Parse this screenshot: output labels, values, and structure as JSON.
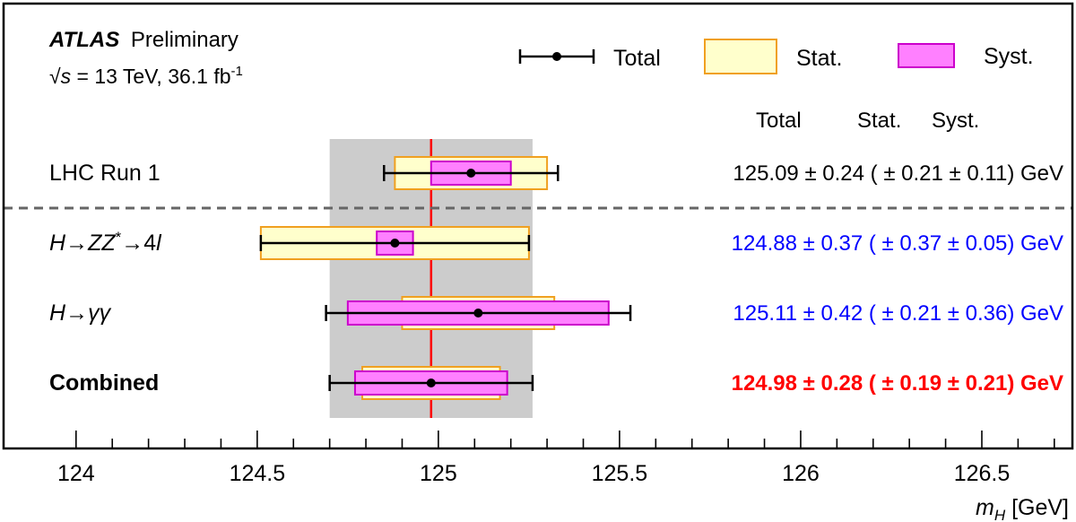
{
  "header": {
    "experiment": "ATLAS",
    "status": "Preliminary",
    "energy_prefix": "√",
    "energy_s": "s",
    "energy_text": " = 13 TeV, 36.1 fb",
    "lumi_exp": "-1"
  },
  "legend": {
    "total": "Total",
    "stat": "Stat.",
    "syst": "Syst."
  },
  "column_headers": {
    "total": "Total",
    "stat": "Stat.",
    "syst": "Syst."
  },
  "colors": {
    "stat_fill": "#ffffcc",
    "stat_edge": "#f0a020",
    "syst_fill": "#ff80ff",
    "syst_edge": "#cc00cc",
    "band": "#cccccc",
    "line": "#ff0000",
    "blue": "#0000ff",
    "red": "#ff0000",
    "black": "#000000"
  },
  "chart_data": {
    "type": "scatter",
    "xlabel_sym": "m",
    "xlabel_sub": "H",
    "xlabel_unit": " [GeV]",
    "xlim": [
      123.8,
      126.75
    ],
    "ticks": [
      "124",
      "124.5",
      "125",
      "125.5",
      "126",
      "126.5"
    ],
    "tick_values": [
      124,
      124.5,
      125,
      125.5,
      126,
      126.5
    ],
    "band": {
      "center": 124.98,
      "half_width": 0.28
    },
    "line_value": 124.98,
    "rows": [
      {
        "label": "LHC Run 1",
        "label_style": "normal",
        "value": 125.09,
        "total": 0.24,
        "stat": 0.21,
        "syst": 0.11,
        "text": "125.09 ± 0.24 ( ± 0.21 ± 0.11) GeV",
        "text_color": "#000000",
        "bold": false
      },
      {
        "label_parts": [
          "H",
          "→",
          "ZZ",
          "*",
          "→",
          "4",
          "l"
        ],
        "label_style": "math",
        "value": 124.88,
        "total": 0.37,
        "stat": 0.37,
        "syst": 0.05,
        "text": "124.88 ± 0.37 ( ± 0.37 ± 0.05) GeV",
        "text_color": "#0000ff",
        "bold": false
      },
      {
        "label_parts": [
          "H",
          "→",
          "γγ"
        ],
        "label_style": "math",
        "value": 125.11,
        "total": 0.42,
        "stat": 0.21,
        "syst": 0.36,
        "text": "125.11 ± 0.42 ( ± 0.21 ± 0.36) GeV",
        "text_color": "#0000ff",
        "bold": false
      },
      {
        "label": "Combined",
        "label_style": "bold",
        "value": 124.98,
        "total": 0.28,
        "stat": 0.19,
        "syst": 0.21,
        "text": "124.98 ± 0.28 ( ± 0.19 ± 0.21) GeV",
        "text_color": "#ff0000",
        "bold": true
      }
    ]
  }
}
